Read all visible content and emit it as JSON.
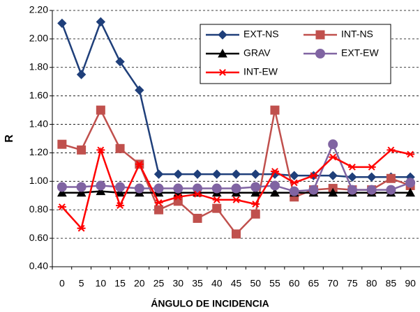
{
  "chart_data": {
    "type": "line",
    "xlabel": "ÁNGULO DE INCIDENCIA",
    "ylabel": "R",
    "categories": [
      "0",
      "5",
      "10",
      "15",
      "20",
      "25",
      "30",
      "35",
      "40",
      "45",
      "50",
      "55",
      "60",
      "65",
      "70",
      "75",
      "80",
      "85",
      "90"
    ],
    "ylim": [
      0.4,
      2.2
    ],
    "yticks": [
      {
        "value": 0.4,
        "label": "0.40"
      },
      {
        "value": 0.6,
        "label": "0.60"
      },
      {
        "value": 0.8,
        "label": "0.80"
      },
      {
        "value": 1.0,
        "label": "1.00"
      },
      {
        "value": 1.2,
        "label": "1.20"
      },
      {
        "value": 1.4,
        "label": "1.40"
      },
      {
        "value": 1.6,
        "label": "1.60"
      },
      {
        "value": 1.8,
        "label": "1.80"
      },
      {
        "value": 2.0,
        "label": "2.00"
      },
      {
        "value": 2.2,
        "label": "2.20"
      }
    ],
    "grid": true,
    "legend": "top-right",
    "series": [
      {
        "name": "EXT-NS",
        "color": "#1f3f7a",
        "marker": "diamond",
        "values": [
          2.11,
          1.75,
          2.12,
          1.84,
          1.64,
          1.05,
          1.05,
          1.05,
          1.05,
          1.05,
          1.05,
          1.05,
          1.04,
          1.04,
          1.04,
          1.03,
          1.03,
          1.03,
          1.03
        ]
      },
      {
        "name": "INT-NS",
        "color": "#c0504d",
        "marker": "square",
        "values": [
          1.26,
          1.22,
          1.5,
          1.23,
          1.12,
          0.8,
          0.86,
          0.74,
          0.81,
          0.63,
          0.77,
          1.5,
          0.89,
          0.94,
          0.95,
          0.94,
          0.94,
          1.02,
          0.97
        ]
      },
      {
        "name": "GRAV",
        "color": "#000000",
        "marker": "triangle",
        "values": [
          0.92,
          0.92,
          0.93,
          0.92,
          0.92,
          0.92,
          0.92,
          0.92,
          0.92,
          0.92,
          0.92,
          0.92,
          0.92,
          0.92,
          0.92,
          0.92,
          0.92,
          0.92,
          0.92
        ]
      },
      {
        "name": "EXT-EW",
        "color": "#8064a2",
        "marker": "circle",
        "values": [
          0.96,
          0.96,
          0.97,
          0.96,
          0.95,
          0.95,
          0.95,
          0.95,
          0.95,
          0.95,
          0.96,
          0.97,
          0.93,
          0.94,
          1.26,
          0.94,
          0.94,
          0.94,
          0.99
        ]
      },
      {
        "name": "INT-EW",
        "color": "#ff0000",
        "marker": "star",
        "values": [
          0.82,
          0.67,
          1.22,
          0.83,
          1.12,
          0.85,
          0.89,
          0.91,
          0.87,
          0.87,
          0.84,
          1.07,
          0.99,
          1.04,
          1.17,
          1.1,
          1.1,
          1.22,
          1.19
        ]
      }
    ]
  }
}
